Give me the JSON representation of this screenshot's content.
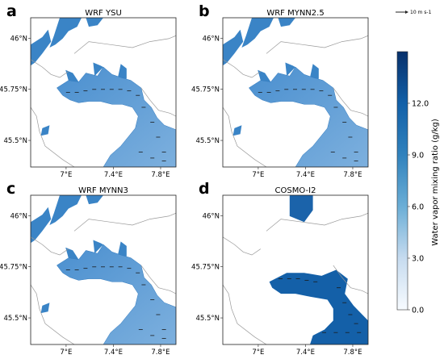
{
  "chart_data": {
    "type": "heatmap",
    "variable": "Water vapor mixing ratio",
    "colorbar": {
      "label": "Water vapor mixing ratio (g/kg)",
      "range": [
        0.0,
        15.0
      ],
      "ticks": [
        "0.0",
        "3.0",
        "6.0",
        "9.0",
        "12.0"
      ],
      "tick_values": [
        0,
        3,
        6,
        9,
        12
      ],
      "colormap": "Blues",
      "color_low": "#f7fbff",
      "color_high": "#08306b"
    },
    "reference_arrow": "10 m s-1",
    "x_axis": {
      "ticks": [
        "7°E",
        "7.4°E",
        "7.8°E"
      ],
      "tick_values": [
        7.0,
        7.4,
        7.8
      ],
      "range": [
        6.7,
        7.93
      ]
    },
    "y_axis": {
      "ticks": [
        "46°N",
        "45.75°N",
        "45.5°N"
      ],
      "tick_values": [
        46.0,
        45.75,
        45.5
      ],
      "range": [
        45.37,
        46.1
      ]
    },
    "panels": [
      {
        "letter": "a",
        "title": "WRF YSU"
      },
      {
        "letter": "b",
        "title": "WRF MYNN2.5"
      },
      {
        "letter": "c",
        "title": "WRF MYNN3"
      },
      {
        "letter": "d",
        "title": "COSMO-I2"
      }
    ]
  }
}
